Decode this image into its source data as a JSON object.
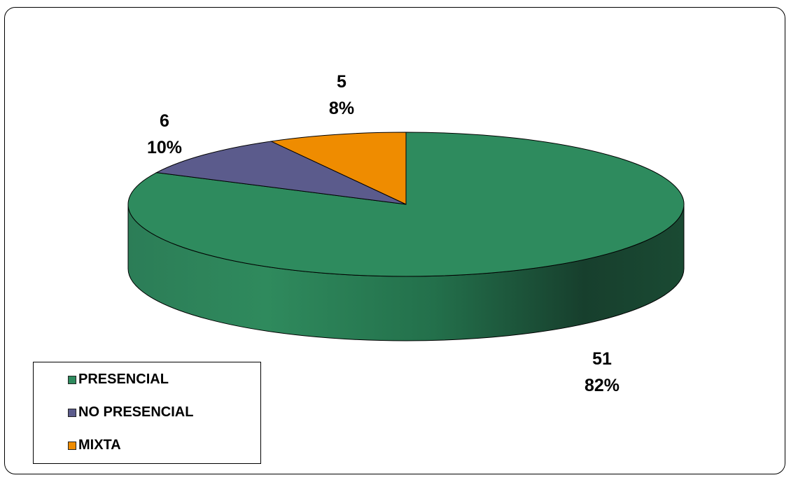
{
  "chart_data": {
    "type": "pie",
    "style": "3d",
    "title": "",
    "categories": [
      "PRESENCIAL",
      "NO PRESENCIAL",
      "MIXTA"
    ],
    "values": [
      51,
      6,
      5
    ],
    "percent_labels": [
      "82%",
      "10%",
      "8%"
    ],
    "value_labels": [
      "51",
      "6",
      "5"
    ],
    "colors": [
      "#2e8b5e",
      "#5b5b8c",
      "#ef8c00"
    ],
    "legend_position": "bottom-left",
    "legend": [
      "PRESENCIAL",
      "NO PRESENCIAL",
      "MIXTA"
    ]
  }
}
